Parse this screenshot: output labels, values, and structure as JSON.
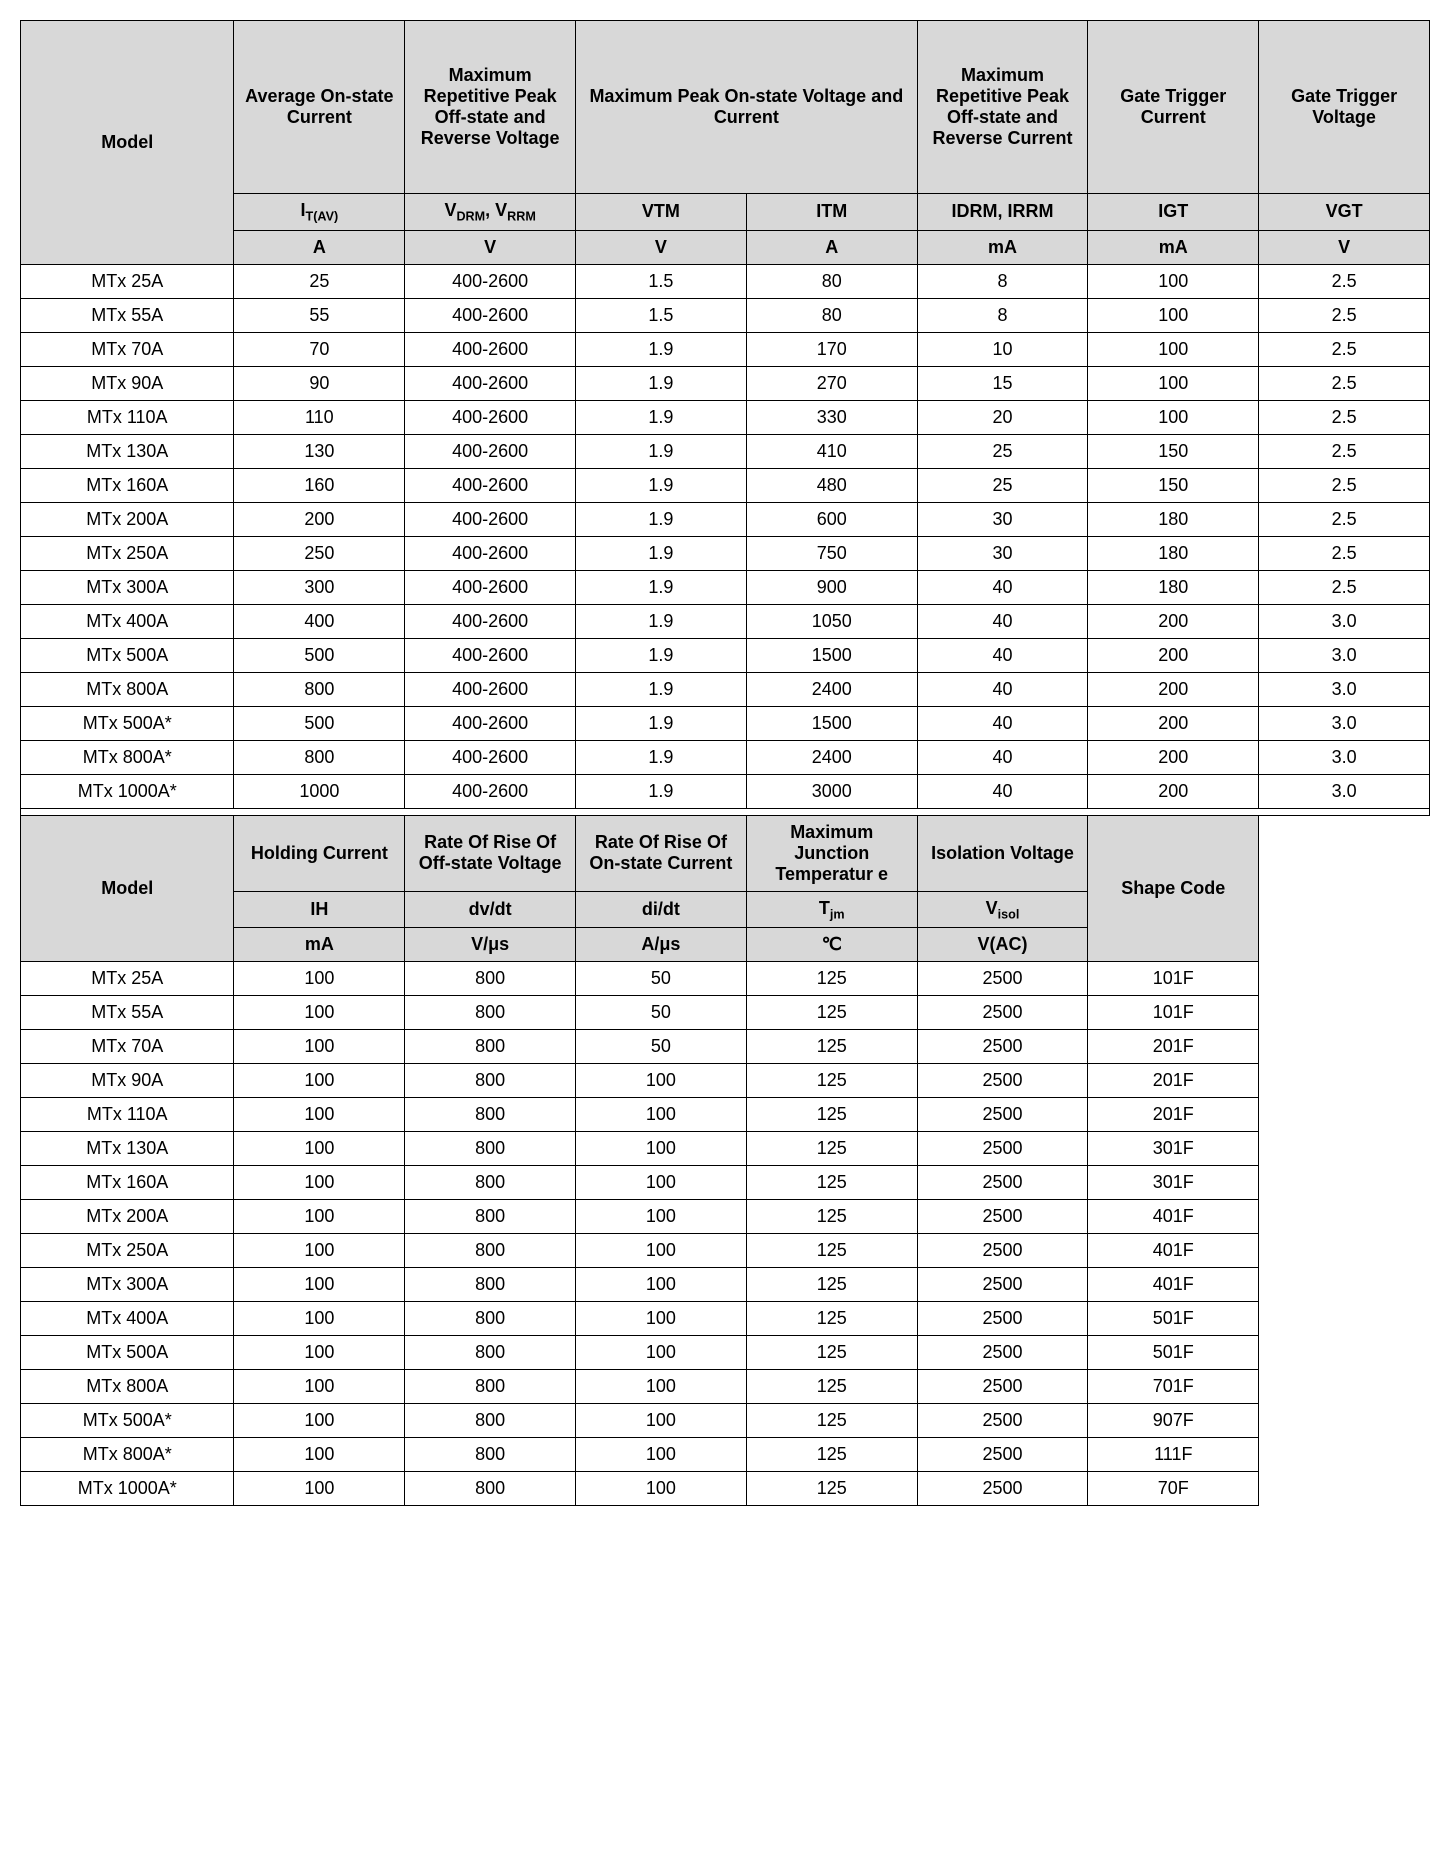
{
  "table1": {
    "headers_row1": [
      "Model",
      "Average On-state Current",
      "Maximum Repetitive Peak Off-state and Reverse Voltage",
      "Maximum Peak On-state Voltage and Current",
      "Maximum Repetitive Peak Off-state and Reverse Current",
      "Gate Trigger Current",
      "Gate Trigger Voltage"
    ],
    "symbols": [
      "I_T(AV)",
      "V_DRM_V_RRM",
      "VTM",
      "ITM",
      "IDRM, IRRM",
      "IGT",
      "VGT"
    ],
    "units": [
      "A",
      "V",
      "V",
      "A",
      "mA",
      "mA",
      "V"
    ],
    "rows": [
      [
        "MTx 25A",
        "25",
        "400-2600",
        "1.5",
        "80",
        "8",
        "100",
        "2.5"
      ],
      [
        "MTx 55A",
        "55",
        "400-2600",
        "1.5",
        "80",
        "8",
        "100",
        "2.5"
      ],
      [
        "MTx 70A",
        "70",
        "400-2600",
        "1.9",
        "170",
        "10",
        "100",
        "2.5"
      ],
      [
        "MTx 90A",
        "90",
        "400-2600",
        "1.9",
        "270",
        "15",
        "100",
        "2.5"
      ],
      [
        "MTx 110A",
        "110",
        "400-2600",
        "1.9",
        "330",
        "20",
        "100",
        "2.5"
      ],
      [
        "MTx 130A",
        "130",
        "400-2600",
        "1.9",
        "410",
        "25",
        "150",
        "2.5"
      ],
      [
        "MTx 160A",
        "160",
        "400-2600",
        "1.9",
        "480",
        "25",
        "150",
        "2.5"
      ],
      [
        "MTx 200A",
        "200",
        "400-2600",
        "1.9",
        "600",
        "30",
        "180",
        "2.5"
      ],
      [
        "MTx 250A",
        "250",
        "400-2600",
        "1.9",
        "750",
        "30",
        "180",
        "2.5"
      ],
      [
        "MTx 300A",
        "300",
        "400-2600",
        "1.9",
        "900",
        "40",
        "180",
        "2.5"
      ],
      [
        "MTx 400A",
        "400",
        "400-2600",
        "1.9",
        "1050",
        "40",
        "200",
        "3.0"
      ],
      [
        "MTx 500A",
        "500",
        "400-2600",
        "1.9",
        "1500",
        "40",
        "200",
        "3.0"
      ],
      [
        "MTx 800A",
        "800",
        "400-2600",
        "1.9",
        "2400",
        "40",
        "200",
        "3.0"
      ],
      [
        "MTx 500A*",
        "500",
        "400-2600",
        "1.9",
        "1500",
        "40",
        "200",
        "3.0"
      ],
      [
        "MTx 800A*",
        "800",
        "400-2600",
        "1.9",
        "2400",
        "40",
        "200",
        "3.0"
      ],
      [
        "MTx 1000A*",
        "1000",
        "400-2600",
        "1.9",
        "3000",
        "40",
        "200",
        "3.0"
      ]
    ]
  },
  "table2": {
    "headers_row1": [
      "Model",
      "Holding Current",
      "Rate Of Rise Of Off-state Voltage",
      "Rate Of Rise Of On-state Current",
      "Maximum Junction Temperatur e",
      "Isolation Voltage",
      "Shape Code",
      ""
    ],
    "symbols": [
      "IH",
      "dv/dt",
      "di/dt",
      "T_jm",
      "V_isol"
    ],
    "units": [
      "mA",
      "V/μs",
      "A/μs",
      "℃",
      "V(AC)"
    ],
    "rows": [
      [
        "MTx 25A",
        "100",
        "800",
        "50",
        "125",
        "2500",
        "101F"
      ],
      [
        "MTx 55A",
        "100",
        "800",
        "50",
        "125",
        "2500",
        "101F"
      ],
      [
        "MTx 70A",
        "100",
        "800",
        "50",
        "125",
        "2500",
        "201F"
      ],
      [
        "MTx 90A",
        "100",
        "800",
        "100",
        "125",
        "2500",
        "201F"
      ],
      [
        "MTx 110A",
        "100",
        "800",
        "100",
        "125",
        "2500",
        "201F"
      ],
      [
        "MTx 130A",
        "100",
        "800",
        "100",
        "125",
        "2500",
        "301F"
      ],
      [
        "MTx 160A",
        "100",
        "800",
        "100",
        "125",
        "2500",
        "301F"
      ],
      [
        "MTx 200A",
        "100",
        "800",
        "100",
        "125",
        "2500",
        "401F"
      ],
      [
        "MTx 250A",
        "100",
        "800",
        "100",
        "125",
        "2500",
        "401F"
      ],
      [
        "MTx 300A",
        "100",
        "800",
        "100",
        "125",
        "2500",
        "401F"
      ],
      [
        "MTx 400A",
        "100",
        "800",
        "100",
        "125",
        "2500",
        "501F"
      ],
      [
        "MTx 500A",
        "100",
        "800",
        "100",
        "125",
        "2500",
        "501F"
      ],
      [
        "MTx 800A",
        "100",
        "800",
        "100",
        "125",
        "2500",
        "701F"
      ],
      [
        "MTx 500A*",
        "100",
        "800",
        "100",
        "125",
        "2500",
        "907F"
      ],
      [
        "MTx 800A*",
        "100",
        "800",
        "100",
        "125",
        "2500",
        "111F"
      ],
      [
        "MTx 1000A*",
        "100",
        "800",
        "100",
        "125",
        "2500",
        "70F"
      ]
    ]
  }
}
